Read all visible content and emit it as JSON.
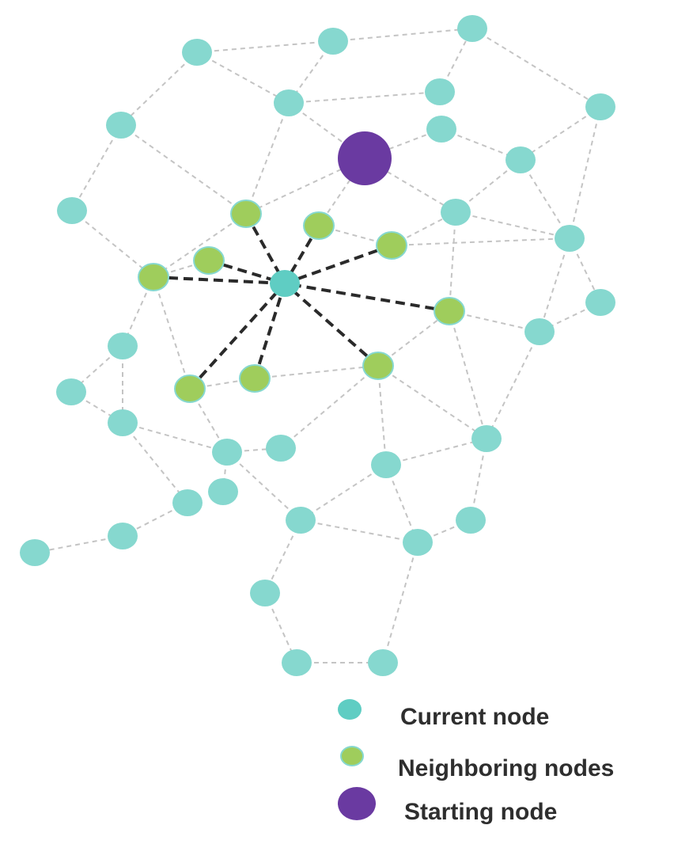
{
  "colors": {
    "node": "#86d8cf",
    "current_node": "#5fcdc3",
    "neighbor_node": "#9fcd5c",
    "starting_node": "#6a3aa1",
    "edge": "#c4c4c4",
    "neighbor_edge": "#2a2a2a"
  },
  "legend": {
    "current": "Current node",
    "neighbors": "Neighboring nodes",
    "start": "Starting node"
  }
}
